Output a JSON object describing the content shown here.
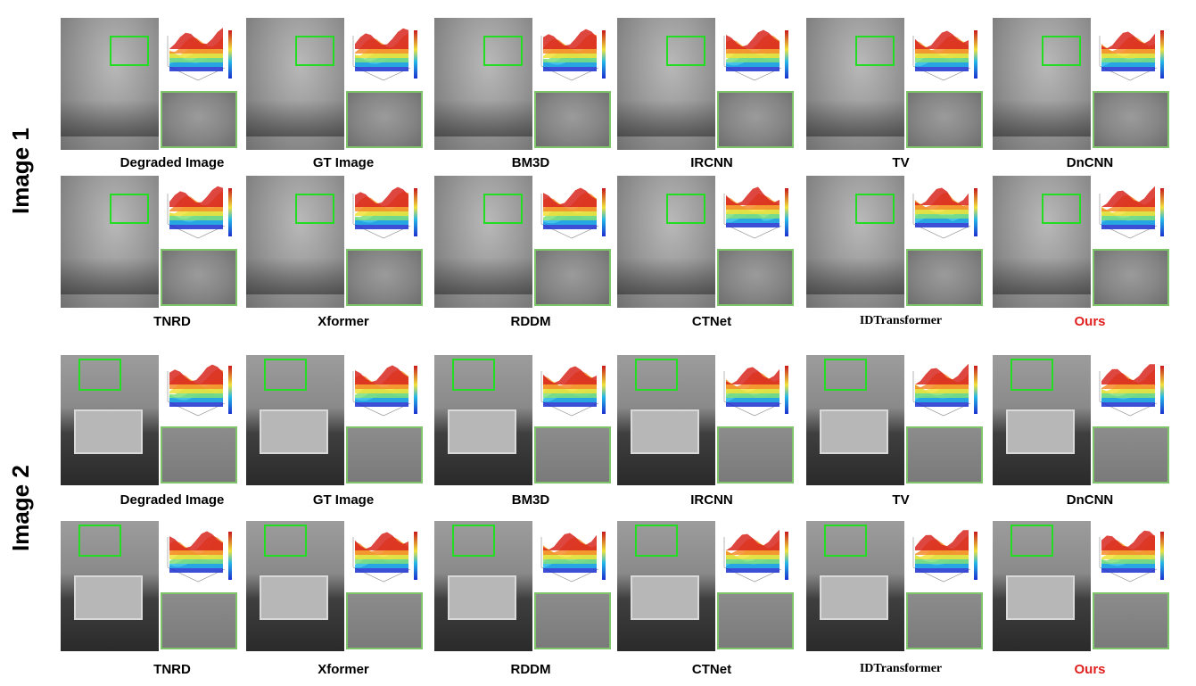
{
  "row_labels": [
    "Image 1",
    "Image 2"
  ],
  "captions_row1": [
    "Degraded Image",
    "GT Image",
    "BM3D",
    "IRCNN",
    "TV",
    "DnCNN"
  ],
  "captions_row2": [
    "TNRD",
    "Xformer",
    "RDDM",
    "CTNet",
    "IDTransformer",
    "Ours"
  ],
  "captions_row3": [
    "Degraded Image",
    "GT Image",
    "BM3D",
    "IRCNN",
    "TV",
    "DnCNN"
  ],
  "captions_row4": [
    "TNRD",
    "Xformer",
    "RDDM",
    "CTNet",
    "IDTransformer",
    "Ours"
  ],
  "colors": {
    "roi": "#22dd22",
    "zoom_border": "#7dc46a",
    "ours_caption": "#e0201f"
  }
}
